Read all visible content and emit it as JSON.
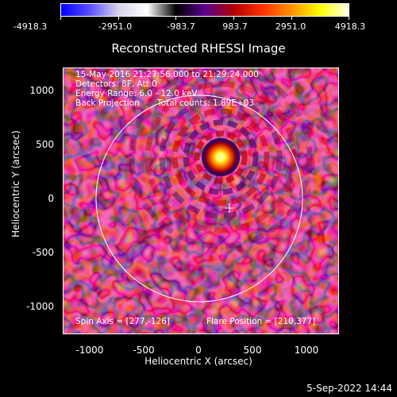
{
  "colorbar": {
    "ticks": [
      "-4918.3",
      "-2951.0",
      "-983.7",
      "983.7",
      "2951.0",
      "4918.3"
    ],
    "gradient_colors": [
      "#0000ff",
      "#5a4fff",
      "#d8d2e6",
      "#ffffff",
      "#000000",
      "#5a0090",
      "#b00000",
      "#ff3000",
      "#ff9000",
      "#ffff00",
      "#ffffe8"
    ]
  },
  "title": "Reconstructed RHESSI Image",
  "info": {
    "line1": "15-May-2016 21:27:56.000 to 21:29:24.000",
    "line2": "Detectors: 8F, Att 0",
    "line3": "Energy Range: 6.0 - 12.0 keV",
    "line4a": "Back Projection",
    "line4b": "Total counts: 1.89E+03",
    "spin_axis": "Spin Axis = [277,-126]",
    "flare_position": "Flare Position = [210,377]"
  },
  "axes": {
    "xlabel": "Heliocentric X (arcsec)",
    "ylabel": "Heliocentric Y (arcsec)",
    "xticks": [
      "-1000",
      "-500",
      "0",
      "500",
      "1000"
    ],
    "yticks": [
      "1000",
      "500",
      "0",
      "-500",
      "-1000"
    ]
  },
  "date": "5-Sep-2022 14:44"
}
